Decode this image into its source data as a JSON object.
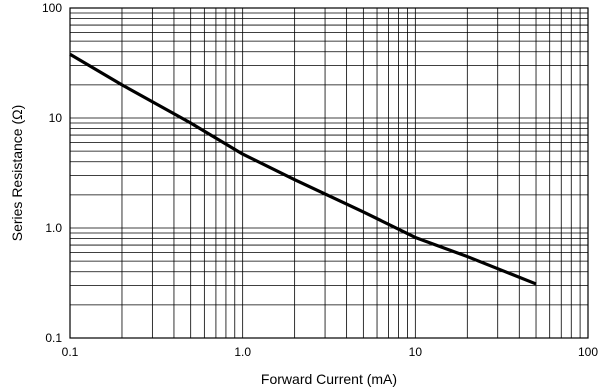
{
  "chart_data": {
    "type": "line",
    "title": "",
    "xlabel": "Forward Current (mA)",
    "ylabel": "Series Resistance (Ω)",
    "xscale": "log",
    "yscale": "log",
    "xlim": [
      0.1,
      100
    ],
    "ylim": [
      0.1,
      100
    ],
    "grid": true,
    "x_ticks": [
      "0.1",
      "1.0",
      "10",
      "100"
    ],
    "y_ticks": [
      "0.1",
      "1.0",
      "10",
      "100"
    ],
    "series": [
      {
        "x": [
          0.1,
          0.2,
          0.5,
          1.0,
          2.0,
          5.0,
          10,
          20,
          50
        ],
        "y": [
          38,
          20,
          9,
          4.7,
          2.75,
          1.4,
          0.82,
          0.55,
          0.31
        ]
      }
    ],
    "colors": {
      "line": "#000000",
      "grid": "#000000",
      "background": "#ffffff"
    }
  }
}
